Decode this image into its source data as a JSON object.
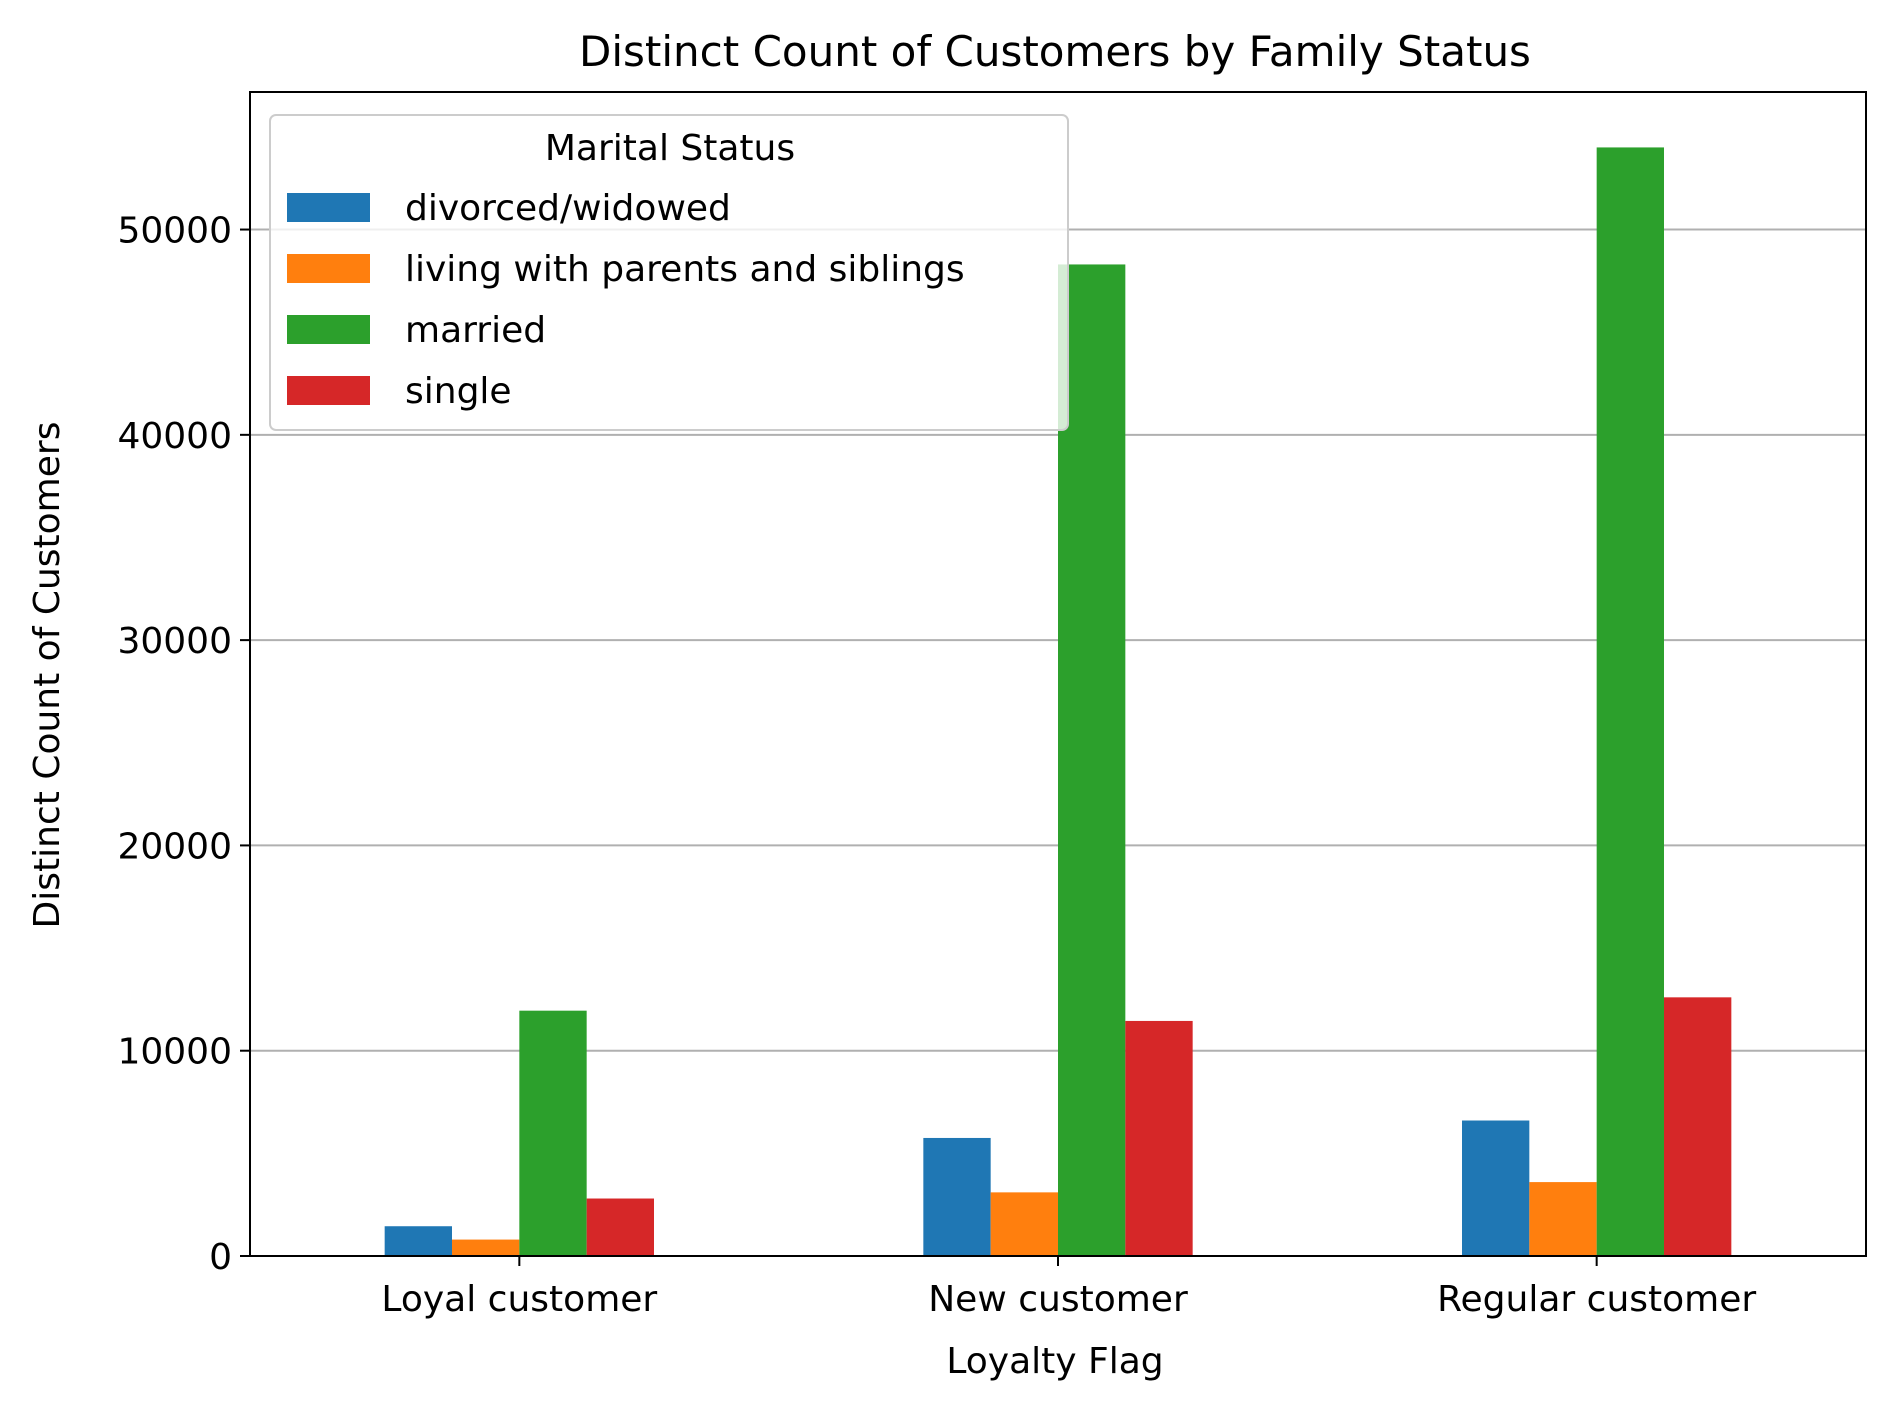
{
  "chart_data": {
    "type": "bar",
    "title": "Distinct Count of Customers by Family Status",
    "xlabel": "Loyalty Flag",
    "ylabel": "Distinct Count of Customers",
    "categories": [
      "Loyal customer",
      "New customer",
      "Regular customer"
    ],
    "series": [
      {
        "name": "divorced/widowed",
        "color": "#1f77b4",
        "values": [
          1450,
          5750,
          6600
        ]
      },
      {
        "name": "living with parents and siblings",
        "color": "#ff7f0e",
        "values": [
          800,
          3100,
          3600
        ]
      },
      {
        "name": "married",
        "color": "#2ca02c",
        "values": [
          11950,
          48300,
          54000
        ]
      },
      {
        "name": "single",
        "color": "#d62728",
        "values": [
          2800,
          11450,
          12600
        ]
      }
    ],
    "ylim": [
      0,
      56700
    ],
    "yticks": [
      0,
      10000,
      20000,
      30000,
      40000,
      50000
    ],
    "grid": "y-axis",
    "legend": {
      "title": "Marital Status",
      "placement": "top-left"
    }
  }
}
